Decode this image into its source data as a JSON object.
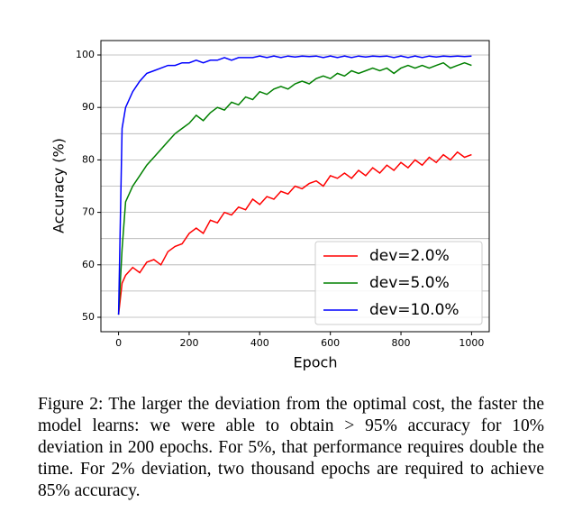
{
  "chart_data": {
    "type": "line",
    "x_label": "Epoch",
    "y_label": "Accuracy (%)",
    "x": [
      0,
      10,
      20,
      40,
      60,
      80,
      100,
      120,
      140,
      160,
      180,
      200,
      220,
      240,
      260,
      280,
      300,
      320,
      340,
      360,
      380,
      400,
      420,
      440,
      460,
      480,
      500,
      520,
      540,
      560,
      580,
      600,
      620,
      640,
      660,
      680,
      700,
      720,
      740,
      760,
      780,
      800,
      820,
      840,
      860,
      880,
      900,
      920,
      940,
      960,
      980,
      1000
    ],
    "series": [
      {
        "name": "dev=2.0%",
        "color": "#ff0000",
        "values": [
          50.5,
          56.5,
          58,
          59.5,
          58.5,
          60.5,
          61,
          60,
          62.5,
          63.5,
          64,
          66,
          67,
          66,
          68.5,
          68,
          70,
          69.5,
          71,
          70.5,
          72.5,
          71.5,
          73,
          72.5,
          74,
          73.5,
          75,
          74.5,
          75.5,
          76,
          75,
          77,
          76.5,
          77.5,
          76.5,
          78,
          77,
          78.5,
          77.5,
          79,
          78,
          79.5,
          78.5,
          80,
          79,
          80.5,
          79.5,
          81,
          80,
          81.5,
          80.5,
          81
        ]
      },
      {
        "name": "dev=5.0%",
        "color": "#008000",
        "values": [
          50.5,
          63,
          72,
          75,
          77,
          79,
          80.5,
          82,
          83.5,
          85,
          86,
          87,
          88.5,
          87.5,
          89,
          90,
          89.5,
          91,
          90.5,
          92,
          91.5,
          93,
          92.5,
          93.5,
          94,
          93.5,
          94.5,
          95,
          94.5,
          95.5,
          96,
          95.5,
          96.5,
          96,
          97,
          96.5,
          97,
          97.5,
          97,
          97.5,
          96.5,
          97.5,
          98,
          97.5,
          98,
          97.5,
          98,
          98.5,
          97.5,
          98,
          98.5,
          98
        ]
      },
      {
        "name": "dev=10.0%",
        "color": "#0000ff",
        "values": [
          50.5,
          86,
          90,
          93,
          95,
          96.5,
          97,
          97.5,
          98,
          98,
          98.5,
          98.5,
          99,
          98.5,
          99,
          99,
          99.5,
          99,
          99.5,
          99.5,
          99.5,
          99.8,
          99.5,
          99.8,
          99.5,
          99.8,
          99.6,
          99.8,
          99.7,
          99.8,
          99.5,
          99.8,
          99.5,
          99.8,
          99.5,
          99.8,
          99.6,
          99.8,
          99.7,
          99.8,
          99.5,
          99.8,
          99.5,
          99.8,
          99.5,
          99.8,
          99.6,
          99.8,
          99.7,
          99.8,
          99.7,
          99.8
        ]
      }
    ],
    "xlim": [
      -50,
      1050
    ],
    "xticks": [
      0,
      200,
      400,
      600,
      800,
      1000
    ],
    "ylim": [
      47.25,
      102.75
    ],
    "yticks": [
      50,
      60,
      70,
      80,
      90,
      100
    ],
    "y_gridlines": [
      50,
      55,
      60,
      65,
      70,
      75,
      80,
      85,
      90,
      95,
      100
    ],
    "grid": true,
    "legend": "lower right"
  },
  "caption": "Figure 2: The larger the deviation from the optimal cost, the faster the model learns: we were able to obtain > 95% accuracy for 10% deviation in 200 epochs. For 5%, that performance requires double the time. For 2% deviation, two thousand epochs are required to achieve 85% accuracy."
}
